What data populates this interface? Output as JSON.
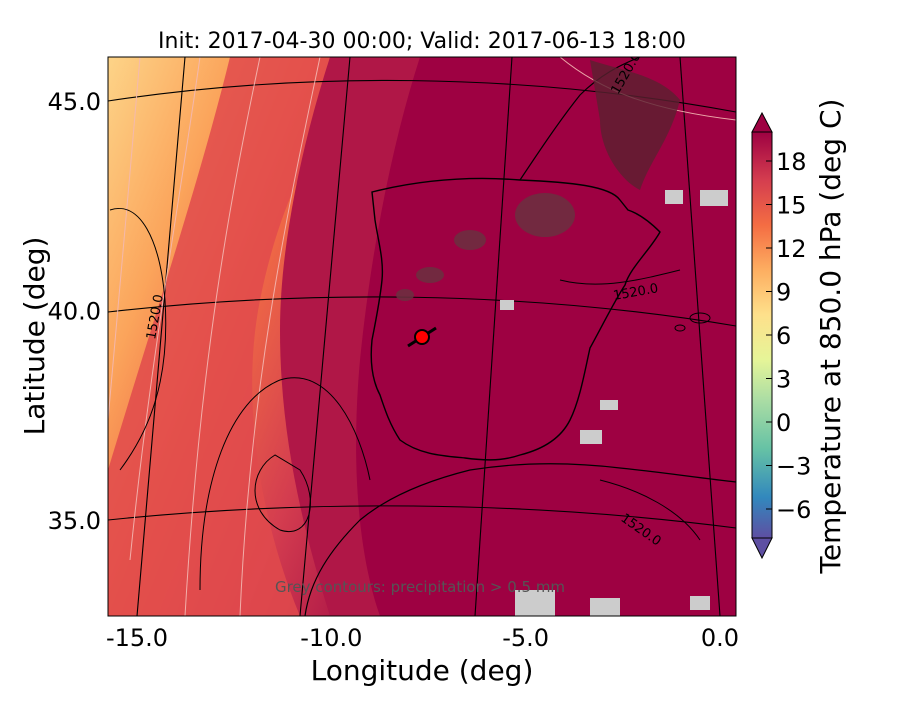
{
  "title": "Init: 2017-04-30 00:00; Valid: 2017-06-13 18:00",
  "x_axis": {
    "label": "Longitude (deg)",
    "ticks": [
      {
        "value": -15,
        "label": "-15.0"
      },
      {
        "value": -10,
        "label": "-10.0"
      },
      {
        "value": -5,
        "label": "-5.0"
      },
      {
        "value": 0,
        "label": "0.0"
      }
    ]
  },
  "y_axis": {
    "label": "Latitude (deg)",
    "ticks": [
      {
        "value": 45,
        "label": "45.0"
      },
      {
        "value": 40,
        "label": "40.0"
      },
      {
        "value": 35,
        "label": "35.0"
      }
    ]
  },
  "colorbar": {
    "label": "Temperature at 850.0 hPa (deg C)",
    "ticks": [
      {
        "value": 18,
        "label": "18"
      },
      {
        "value": 15,
        "label": "15"
      },
      {
        "value": 12,
        "label": "12"
      },
      {
        "value": 9,
        "label": "9"
      },
      {
        "value": 6,
        "label": "6"
      },
      {
        "value": 3,
        "label": "3"
      },
      {
        "value": 0,
        "label": "0"
      },
      {
        "value": -3,
        "label": "−3"
      },
      {
        "value": -6,
        "label": "−6"
      }
    ],
    "range": [
      -8,
      20
    ],
    "extend": "both"
  },
  "contour_labels": [
    {
      "text": "1520.0",
      "position": "west of Portugal (lon -15, lat 39.5)"
    },
    {
      "text": "1520.0",
      "position": "eastern Spain (lon -3, lat 40.2)"
    },
    {
      "text": "1520.0",
      "position": "Alboran Sea (lon -2.5, lat 34.5)"
    },
    {
      "text": "1520.0",
      "position": "southern France (lon -3, lat 45.5)"
    }
  ],
  "annotation": "Grey contours: precipitation > 0.5 mm",
  "marker": {
    "lon": -7.7,
    "lat": 39.3,
    "color": "#ff0000"
  },
  "colors": {
    "hot": "#9e0142",
    "warm": "#d53e4f",
    "orange": "#f46d43",
    "light_orange": "#fdae61",
    "pale": "#fee08b"
  },
  "chart_data": {
    "type": "heatmap",
    "title": "Init: 2017-04-30 00:00; Valid: 2017-06-13 18:00",
    "xlabel": "Longitude (deg)",
    "ylabel": "Latitude (deg)",
    "xlim": [
      -16,
      0.3
    ],
    "ylim": [
      32.5,
      46
    ],
    "colorbar_label": "Temperature at 850.0 hPa (deg C)",
    "color_range": [
      -8,
      20
    ],
    "field_summary": [
      {
        "region": "Iberian Peninsula and surroundings",
        "value": 20
      },
      {
        "region": "near-coast Atlantic west of Iberia",
        "value": 18
      },
      {
        "region": "offshore Atlantic (lon -13 to -10)",
        "value": 16
      },
      {
        "region": "far Atlantic (lon -16 to -13)",
        "value": 13
      },
      {
        "region": "northwest Bay of Biscay",
        "value": 10
      }
    ]
  }
}
